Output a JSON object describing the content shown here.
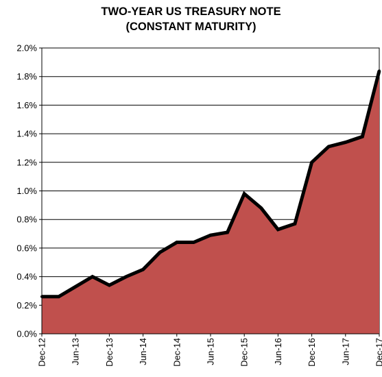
{
  "chart_data": {
    "type": "area",
    "title_lines": [
      "TWO-YEAR US TREASURY NOTE",
      "(CONSTANT MATURITY)"
    ],
    "xlabel": "",
    "ylabel": "",
    "y_unit": "percent",
    "ylim": [
      0,
      2.0
    ],
    "y_ticks": [
      "0.0%",
      "0.2%",
      "0.4%",
      "0.6%",
      "0.8%",
      "1.0%",
      "1.2%",
      "1.4%",
      "1.6%",
      "1.8%",
      "2.0%"
    ],
    "x_tick_labels": [
      "Dec-12",
      "Jun-13",
      "Dec-13",
      "Jun-14",
      "Dec-14",
      "Jun-15",
      "Dec-15",
      "Jun-16",
      "Dec-16",
      "Jun-17",
      "Dec-17"
    ],
    "x": [
      "Dec-12",
      "Mar-13",
      "Jun-13",
      "Sep-13",
      "Dec-13",
      "Mar-14",
      "Jun-14",
      "Sep-14",
      "Dec-14",
      "Mar-15",
      "Jun-15",
      "Sep-15",
      "Dec-15",
      "Mar-16",
      "Jun-16",
      "Sep-16",
      "Dec-16",
      "Mar-17",
      "Jun-17",
      "Sep-17",
      "Dec-17"
    ],
    "values": [
      0.26,
      0.26,
      0.33,
      0.4,
      0.34,
      0.4,
      0.45,
      0.57,
      0.64,
      0.64,
      0.69,
      0.71,
      0.98,
      0.88,
      0.73,
      0.77,
      1.2,
      1.31,
      1.34,
      1.38,
      1.84
    ],
    "grid": true,
    "legend": "none",
    "fill_color": "#c0504d",
    "line_color": "#000000"
  }
}
